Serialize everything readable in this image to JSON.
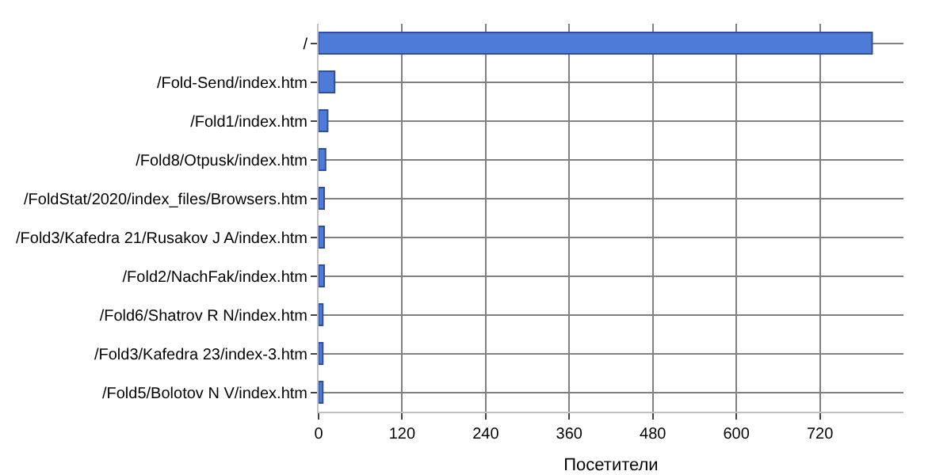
{
  "chart_data": {
    "type": "bar",
    "orientation": "horizontal",
    "categories": [
      "/",
      "/Fold-Send/index.htm",
      "/Fold1/index.htm",
      "/Fold8/Otpusk/index.htm",
      "/FoldStat/2020/index_files/Browsers.htm",
      "/Fold3/Kafedra 21/Rusakov J A/index.htm",
      "/Fold2/NachFak/index.htm",
      "/Fold6/Shatrov R N/index.htm",
      "/Fold3/Kafedra 23/index-3.htm",
      "/Fold5/Bolotov N V/index.htm"
    ],
    "values": [
      795,
      23,
      13,
      10,
      8,
      8,
      8,
      6,
      6,
      6
    ],
    "color": "#4f7bd8",
    "xlabel": "Посетители",
    "xlim": [
      0,
      840
    ],
    "xticks": [
      0,
      120,
      240,
      360,
      480,
      600,
      720
    ],
    "grid": true
  }
}
